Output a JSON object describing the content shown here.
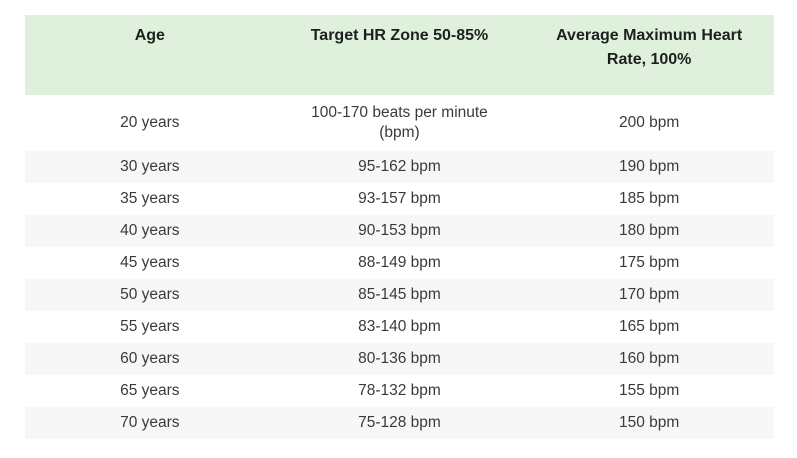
{
  "colors": {
    "header_bg": "#dff0dd",
    "row_alt_bg": "#f7f7f7",
    "header_text": "#1d211d",
    "body_text": "#3a3a3a"
  },
  "chart_data": {
    "type": "table",
    "title": "",
    "columns": [
      "Age",
      "Target HR Zone 50-85%",
      "Average Maximum Heart Rate, 100%"
    ],
    "rows": [
      [
        "20 years",
        "100-170 beats per minute (bpm)",
        "200 bpm"
      ],
      [
        "30 years",
        "95-162 bpm",
        "190 bpm"
      ],
      [
        "35 years",
        "93-157 bpm",
        "185 bpm"
      ],
      [
        "40 years",
        "90-153 bpm",
        "180 bpm"
      ],
      [
        "45 years",
        "88-149 bpm",
        "175 bpm"
      ],
      [
        "50 years",
        "85-145 bpm",
        "170 bpm"
      ],
      [
        "55 years",
        "83-140 bpm",
        "165 bpm"
      ],
      [
        "60 years",
        "80-136 bpm",
        "160 bpm"
      ],
      [
        "65 years",
        "78-132 bpm",
        "155 bpm"
      ],
      [
        "70 years",
        "75-128 bpm",
        "150 bpm"
      ]
    ],
    "layout": {
      "striped_rows": true,
      "row_stripe_pattern": "even rows shaded",
      "alignment": "center",
      "grid": false
    }
  }
}
